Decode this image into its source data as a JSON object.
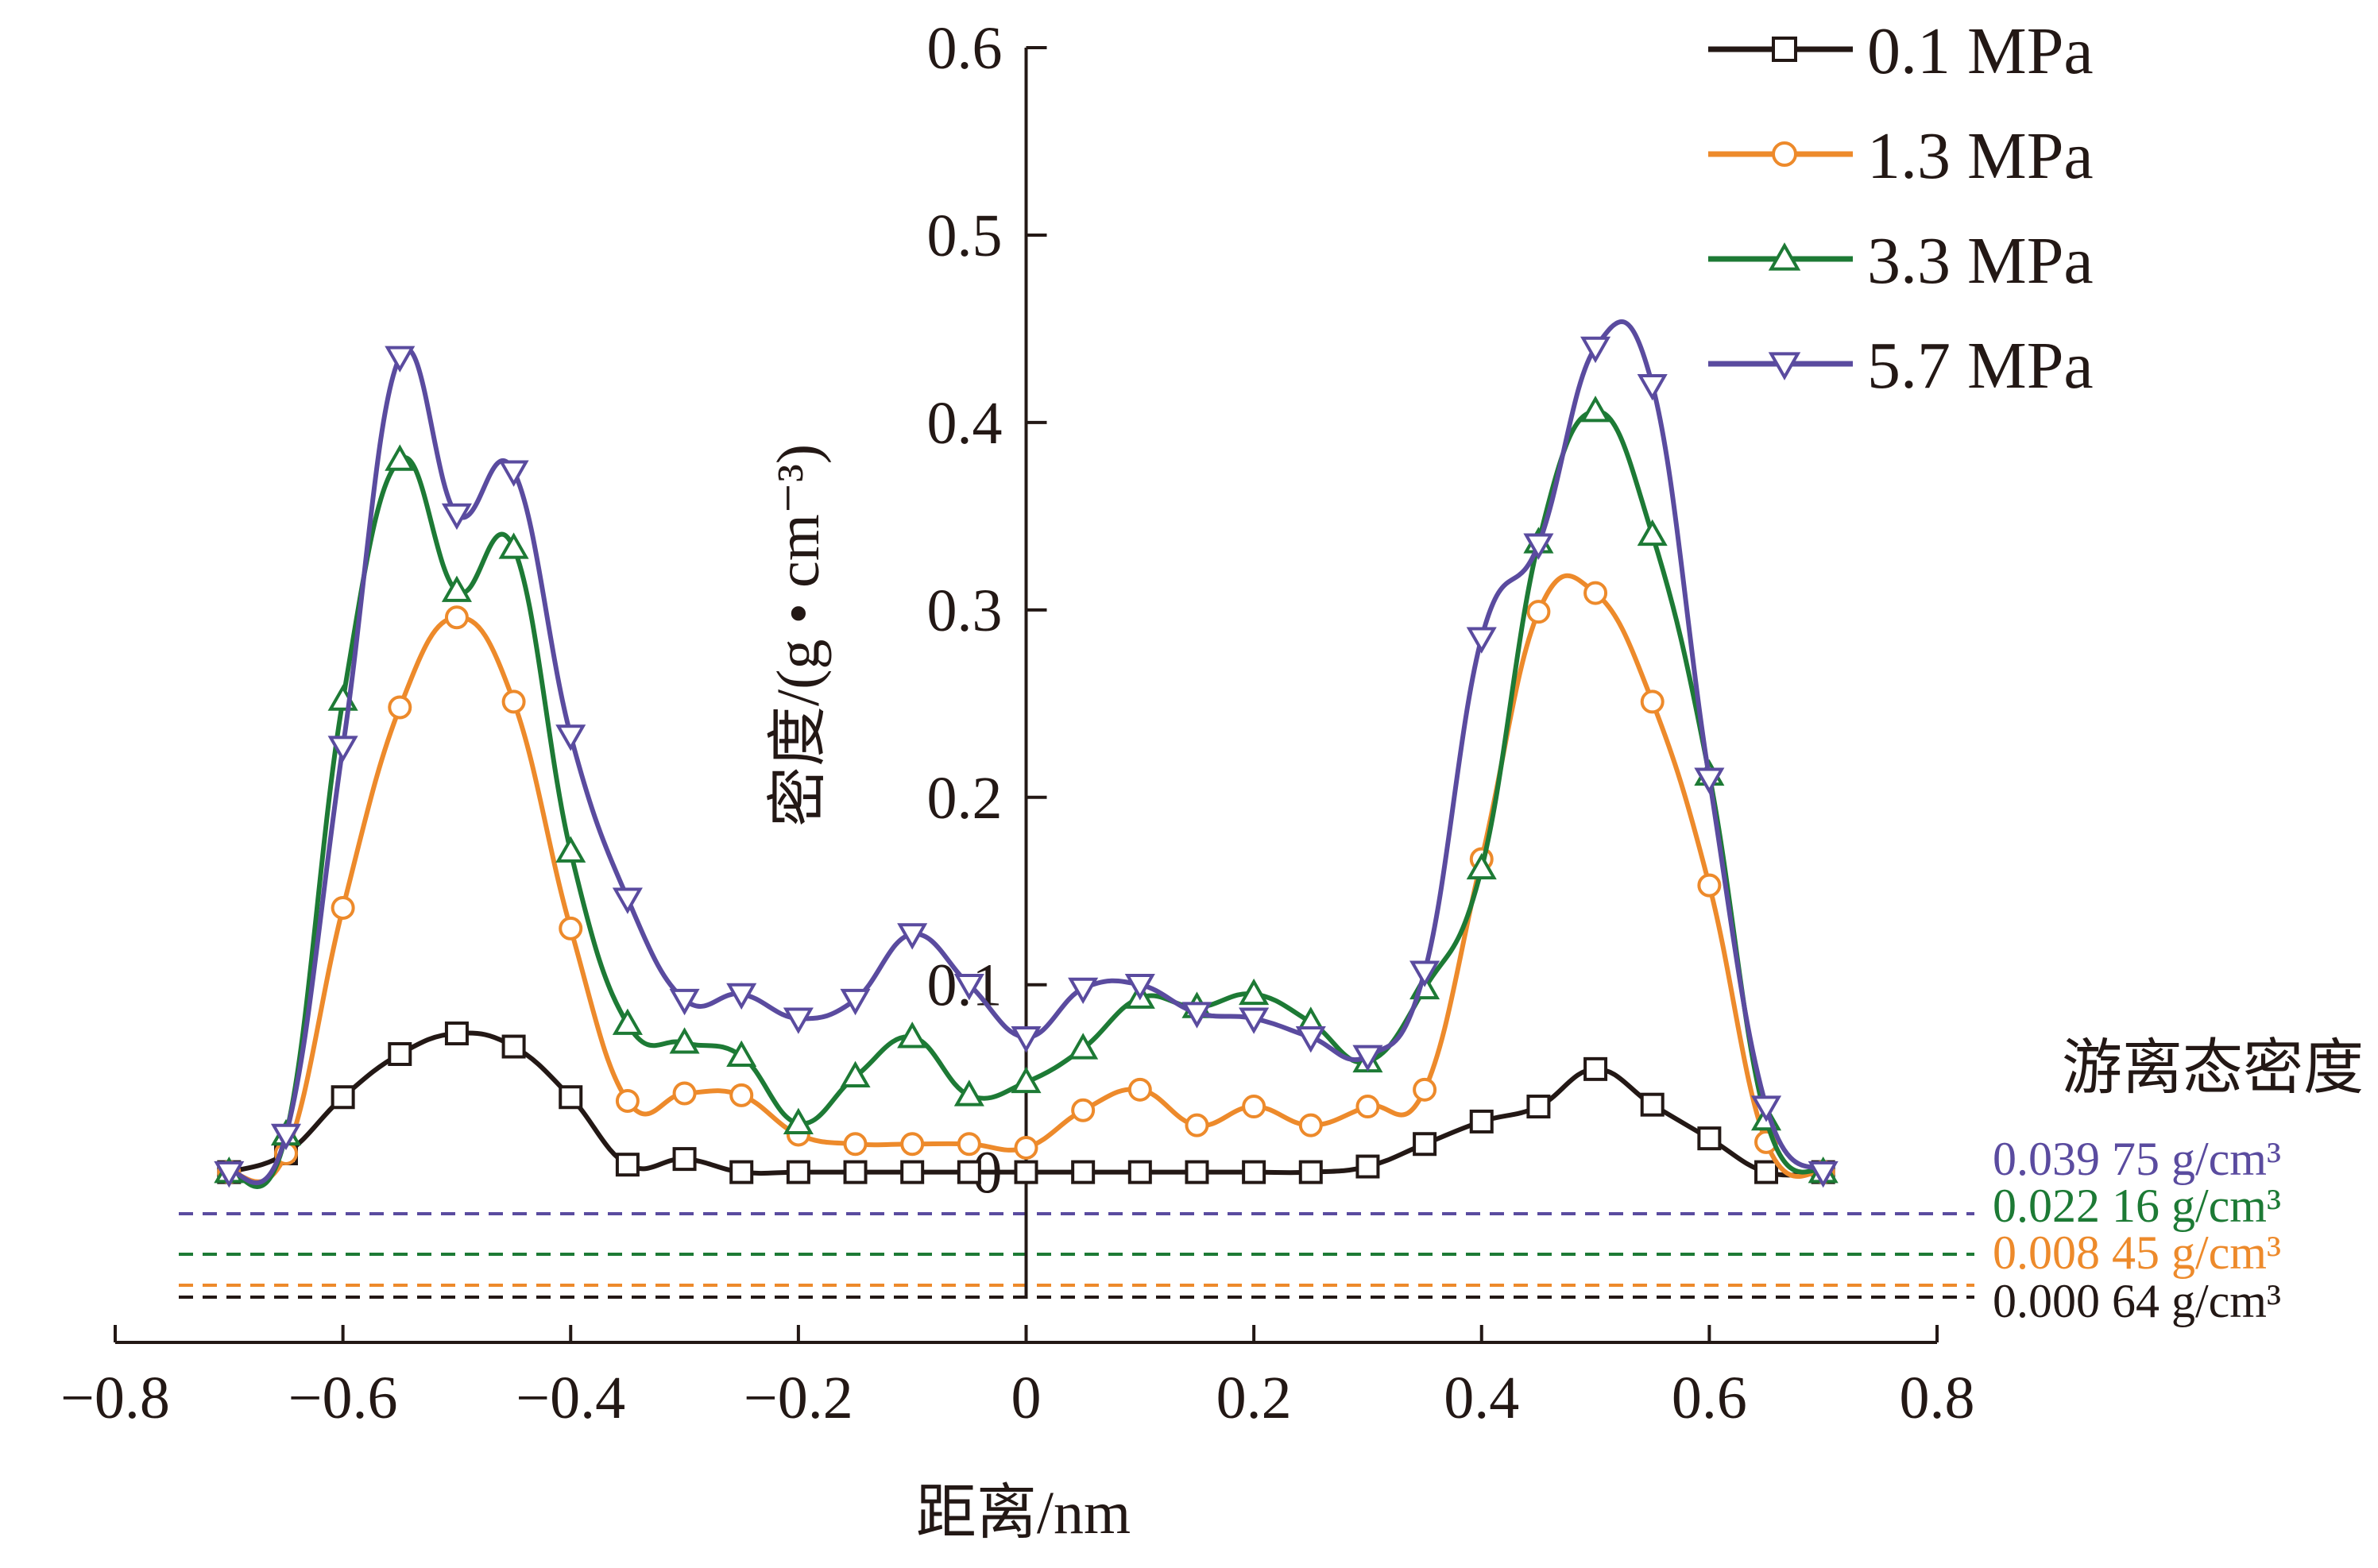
{
  "chart_data": {
    "type": "line",
    "xlabel": "距离/nm",
    "ylabel": "密度/(g • cm⁻³)",
    "xlim": [
      -0.8,
      0.8
    ],
    "ylim": [
      -0.04,
      0.6
    ],
    "x_ticks": [
      -0.8,
      -0.6,
      -0.4,
      -0.2,
      0,
      0.2,
      0.4,
      0.6,
      0.8
    ],
    "x_tick_labels": [
      "−0.8",
      "−0.6",
      "−0.4",
      "−0.2",
      "0",
      "0.2",
      "0.4",
      "0.6",
      "0.8"
    ],
    "y_ticks": [
      0,
      0.1,
      0.2,
      0.3,
      0.4,
      0.5,
      0.6
    ],
    "y_tick_labels": [
      "0",
      "0.1",
      "0.2",
      "0.3",
      "0.4",
      "0.5",
      "0.6"
    ],
    "legend_position": "top-right",
    "grid": false,
    "x": [
      -0.7,
      -0.65,
      -0.6,
      -0.55,
      -0.5,
      -0.45,
      -0.4,
      -0.35,
      -0.3,
      -0.25,
      -0.2,
      -0.15,
      -0.1,
      -0.05,
      0,
      0.05,
      0.1,
      0.15,
      0.2,
      0.25,
      0.3,
      0.35,
      0.4,
      0.45,
      0.5,
      0.55,
      0.6,
      0.65,
      0.7
    ],
    "series": [
      {
        "name": "0.1 MPa",
        "color": "#231815",
        "marker": "square",
        "values": [
          0,
          0.01,
          0.04,
          0.063,
          0.074,
          0.067,
          0.04,
          0.004,
          0.007,
          0,
          0,
          0,
          0,
          0,
          0,
          0,
          0,
          0,
          0,
          0,
          0.003,
          0.015,
          0.027,
          0.035,
          0.055,
          0.036,
          0.018,
          0,
          0
        ],
        "free_density": "0.000 64 g/cm³",
        "free_density_value": 0.00064
      },
      {
        "name": "1.3 MPa",
        "color": "#ed8a2b",
        "marker": "circle",
        "values": [
          0,
          0.01,
          0.141,
          0.248,
          0.296,
          0.251,
          0.13,
          0.038,
          0.042,
          0.041,
          0.02,
          0.015,
          0.015,
          0.015,
          0.013,
          0.033,
          0.044,
          0.025,
          0.035,
          0.025,
          0.035,
          0.044,
          0.167,
          0.299,
          0.309,
          0.251,
          0.153,
          0.016,
          0
        ],
        "free_density": "0.008 45 g/cm³",
        "free_density_value": 0.00845
      },
      {
        "name": "3.3 MPa",
        "color": "#1d7a35",
        "marker": "triangle-up",
        "values": [
          0,
          0.02,
          0.252,
          0.38,
          0.31,
          0.333,
          0.171,
          0.079,
          0.069,
          0.062,
          0.026,
          0.051,
          0.072,
          0.041,
          0.048,
          0.066,
          0.093,
          0.088,
          0.095,
          0.08,
          0.059,
          0.098,
          0.162,
          0.336,
          0.406,
          0.34,
          0.212,
          0.028,
          0
        ],
        "free_density": "0.022 16 g/cm³",
        "free_density_value": 0.02216
      },
      {
        "name": "5.7 MPa",
        "color": "#5a4b9f",
        "marker": "triangle-down",
        "values": [
          0,
          0.02,
          0.227,
          0.435,
          0.351,
          0.374,
          0.233,
          0.146,
          0.092,
          0.095,
          0.082,
          0.092,
          0.127,
          0.1,
          0.072,
          0.098,
          0.1,
          0.085,
          0.082,
          0.072,
          0.062,
          0.107,
          0.285,
          0.335,
          0.44,
          0.42,
          0.21,
          0.035,
          0
        ],
        "free_density": "0.039 75 g/cm³",
        "free_density_value": 0.03975
      }
    ],
    "free_density_title": "游离态密度"
  }
}
